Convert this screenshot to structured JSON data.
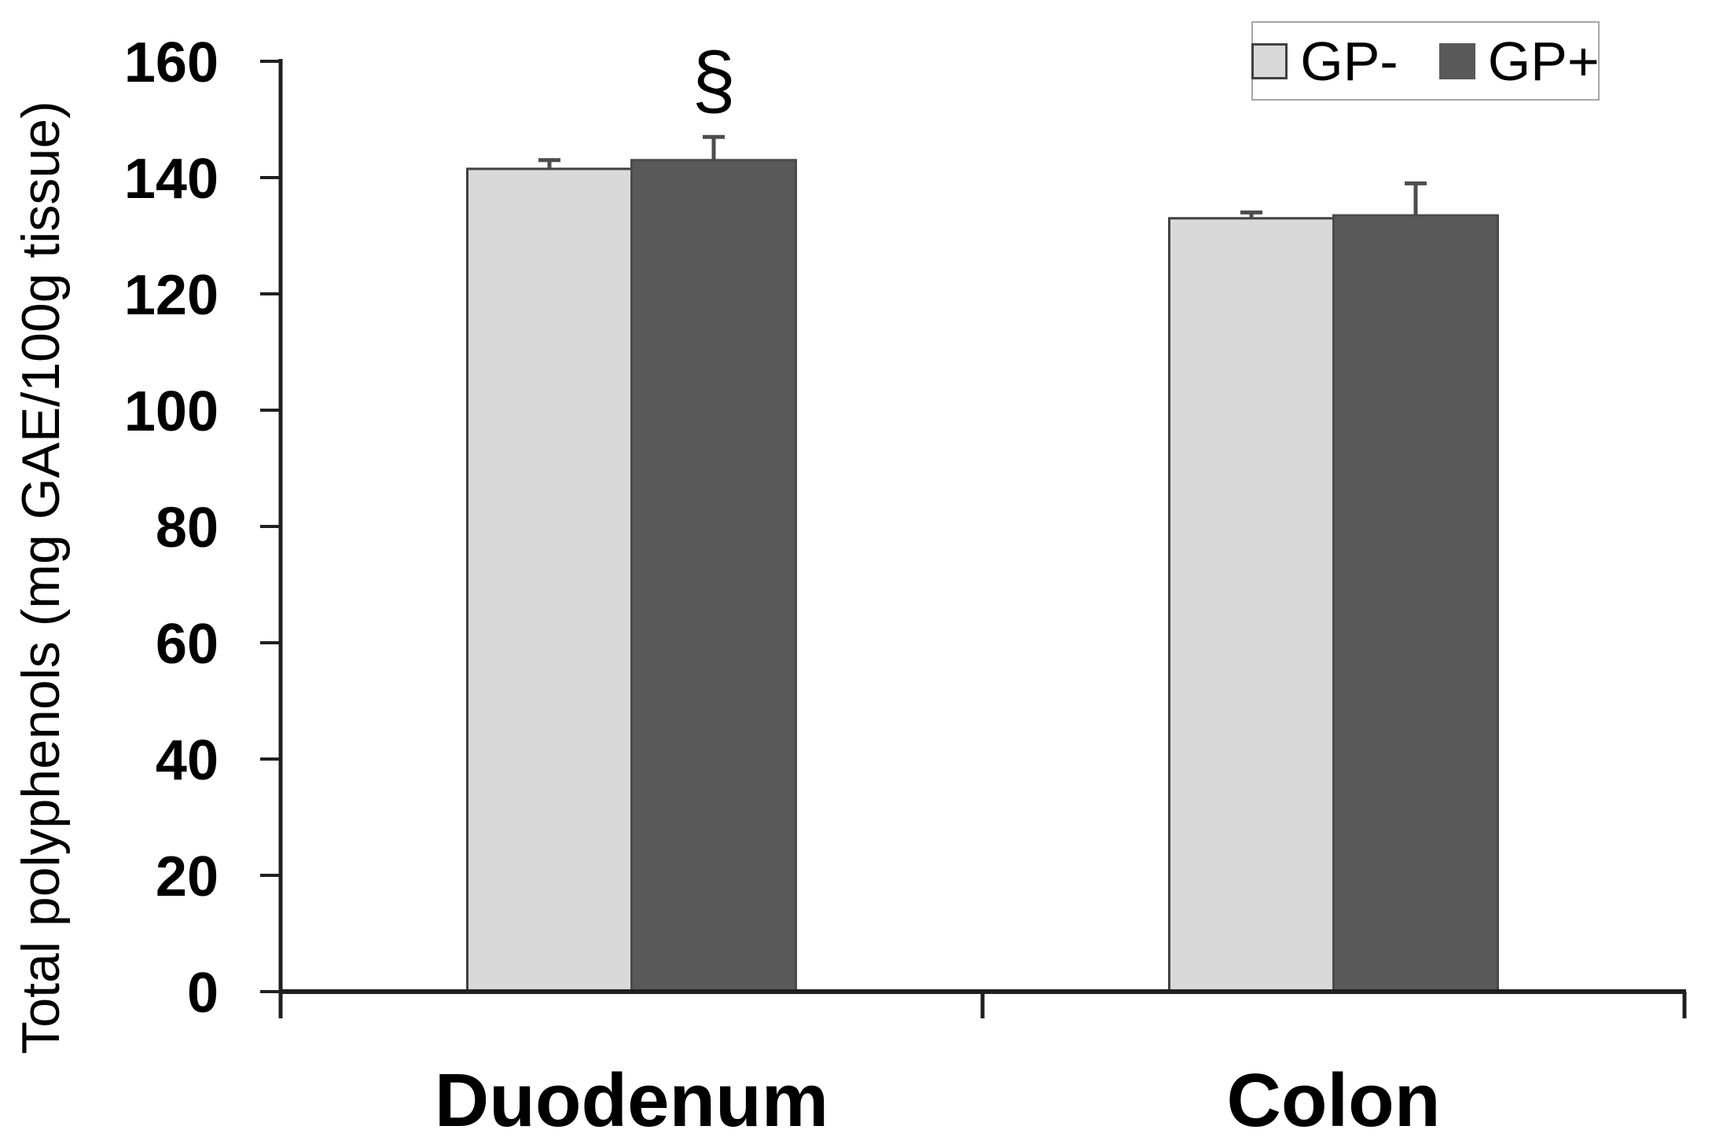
{
  "figure": {
    "background": "#ffffff"
  },
  "chart_data": {
    "type": "bar",
    "title": "",
    "xlabel": "",
    "ylabel": "Total polyphenols (mg GAE/100g tissue)",
    "categories": [
      "Duodenum",
      "Colon"
    ],
    "series": [
      {
        "name": "GP-",
        "values": [
          141.5,
          133.0
        ],
        "errors_plus": [
          1.5,
          1.0
        ],
        "color": "#d9d9d9",
        "border": "#404040"
      },
      {
        "name": "GP+",
        "values": [
          143.0,
          133.5
        ],
        "errors_plus": [
          4.0,
          5.5
        ],
        "color": "#595959",
        "border": "#4a4a4a"
      }
    ],
    "ylim": [
      0,
      160
    ],
    "ytick_step": 20,
    "ytick_labels": [
      "0",
      "20",
      "40",
      "60",
      "80",
      "100",
      "120",
      "140",
      "160"
    ],
    "grid": false,
    "legend_position": "top-right",
    "legend_entries": [
      "GP-",
      "GP+"
    ],
    "annotations": [
      {
        "text": "§",
        "category_index": 0,
        "series_index": 1
      }
    ]
  },
  "colors": {
    "axis": "#1f1f1f",
    "tick": "#1f1f1f",
    "error_bar": "#4d4d4d",
    "legend_border": "#a6a6a6",
    "text": "#000000"
  }
}
